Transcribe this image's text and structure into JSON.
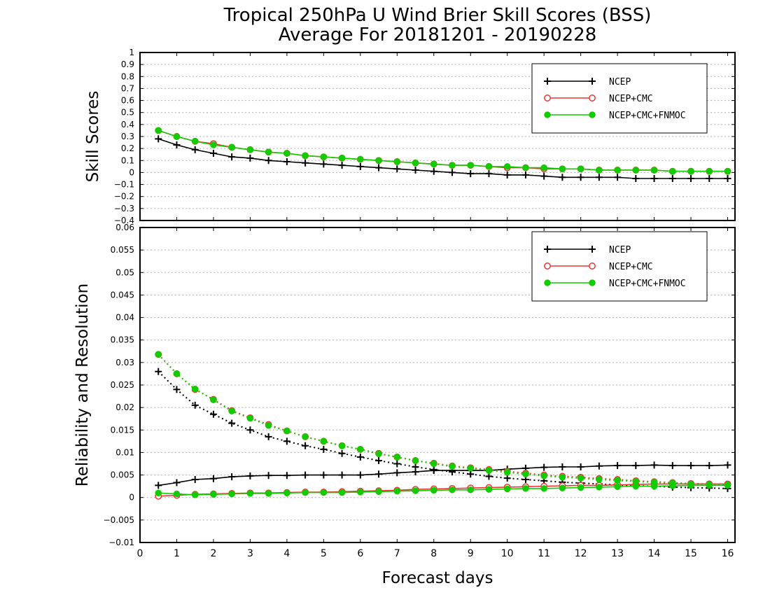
{
  "title_line1": "Tropical 250hPa U Wind Brier Skill Scores (BSS)",
  "title_line2": "Average For 20181201 - 20190228",
  "xlabel": "Forecast days",
  "colors": {
    "NCEP": "#000000",
    "NCEP+CMC": "#ee3333",
    "NCEP+CMC+FNMOC": "#11cc00",
    "grid": "#b0b0b0"
  },
  "chart_data": [
    {
      "type": "line",
      "ylabel": "Skill Scores",
      "xlim": [
        0,
        16.2
      ],
      "ylim": [
        -0.4,
        1
      ],
      "xticks": [
        "0",
        "1",
        "2",
        "3",
        "4",
        "5",
        "6",
        "7",
        "8",
        "9",
        "10",
        "11",
        "12",
        "13",
        "14",
        "15",
        "16"
      ],
      "yticks": [
        "−0.4",
        "−0.3",
        "−0.2",
        "−0.1",
        "0",
        "0.1",
        "0.2",
        "0.3",
        "0.4",
        "0.5",
        "0.6",
        "0.7",
        "0.8",
        "0.9",
        "1"
      ],
      "ytick_values": [
        -0.4,
        -0.3,
        -0.2,
        -0.1,
        0,
        0.1,
        0.2,
        0.3,
        0.4,
        0.5,
        0.6,
        0.7,
        0.8,
        0.9,
        1
      ],
      "grid": true,
      "legend_position": "top-right",
      "x": [
        0.5,
        1,
        1.5,
        2,
        2.5,
        3,
        3.5,
        4,
        4.5,
        5,
        5.5,
        6,
        6.5,
        7,
        7.5,
        8,
        8.5,
        9,
        9.5,
        10,
        10.5,
        11,
        11.5,
        12,
        12.5,
        13,
        13.5,
        14,
        14.5,
        15,
        15.5,
        16
      ],
      "series": [
        {
          "name": "NCEP",
          "marker": "plus",
          "style": "solid",
          "values": [
            0.28,
            0.23,
            0.19,
            0.16,
            0.13,
            0.12,
            0.1,
            0.09,
            0.08,
            0.07,
            0.06,
            0.05,
            0.04,
            0.03,
            0.02,
            0.01,
            0.0,
            -0.01,
            -0.01,
            -0.02,
            -0.02,
            -0.03,
            -0.04,
            -0.04,
            -0.04,
            -0.04,
            -0.05,
            -0.05,
            -0.05,
            -0.05,
            -0.05,
            -0.05
          ]
        },
        {
          "name": "NCEP+CMC",
          "marker": "open-circle",
          "style": "solid",
          "values": [
            0.35,
            0.3,
            0.26,
            0.24,
            0.21,
            0.19,
            0.17,
            0.16,
            0.14,
            0.13,
            0.12,
            0.11,
            0.1,
            0.09,
            0.08,
            0.07,
            0.06,
            0.06,
            0.05,
            0.04,
            0.04,
            0.03,
            0.03,
            0.03,
            0.02,
            0.02,
            0.02,
            0.02,
            0.01,
            0.01,
            0.01,
            0.01
          ]
        },
        {
          "name": "NCEP+CMC+FNMOC",
          "marker": "filled-circle",
          "style": "solid",
          "values": [
            0.35,
            0.3,
            0.26,
            0.23,
            0.21,
            0.19,
            0.17,
            0.16,
            0.14,
            0.13,
            0.12,
            0.11,
            0.1,
            0.09,
            0.08,
            0.07,
            0.06,
            0.06,
            0.05,
            0.05,
            0.04,
            0.04,
            0.03,
            0.03,
            0.02,
            0.02,
            0.02,
            0.02,
            0.01,
            0.01,
            0.01,
            0.01
          ]
        }
      ]
    },
    {
      "type": "line",
      "ylabel": "Reliability and Resolution",
      "xlim": [
        0,
        16.2
      ],
      "ylim": [
        -0.01,
        0.06
      ],
      "xticks": [
        "0",
        "1",
        "2",
        "3",
        "4",
        "5",
        "6",
        "7",
        "8",
        "9",
        "10",
        "11",
        "12",
        "13",
        "14",
        "15",
        "16"
      ],
      "yticks": [
        "−0.01",
        "−0.005",
        "0",
        "0.005",
        "0.01",
        "0.015",
        "0.02",
        "0.025",
        "0.03",
        "0.035",
        "0.04",
        "0.045",
        "0.05",
        "0.055",
        "0.06"
      ],
      "ytick_values": [
        -0.01,
        -0.005,
        0,
        0.005,
        0.01,
        0.015,
        0.02,
        0.025,
        0.03,
        0.035,
        0.04,
        0.045,
        0.05,
        0.055,
        0.06
      ],
      "grid": true,
      "legend_position": "top-right",
      "x": [
        0.5,
        1,
        1.5,
        2,
        2.5,
        3,
        3.5,
        4,
        4.5,
        5,
        5.5,
        6,
        6.5,
        7,
        7.5,
        8,
        8.5,
        9,
        9.5,
        10,
        10.5,
        11,
        11.5,
        12,
        12.5,
        13,
        13.5,
        14,
        14.5,
        15,
        15.5,
        16
      ],
      "series": [
        {
          "name": "NCEP",
          "metric": "reliability",
          "marker": "plus",
          "style": "solid",
          "values": [
            0.0027,
            0.0033,
            0.004,
            0.0042,
            0.0046,
            0.0048,
            0.0049,
            0.0049,
            0.005,
            0.005,
            0.005,
            0.005,
            0.0052,
            0.0055,
            0.0057,
            0.006,
            0.006,
            0.006,
            0.006,
            0.0063,
            0.0065,
            0.0067,
            0.0068,
            0.0068,
            0.007,
            0.0071,
            0.0071,
            0.0072,
            0.0071,
            0.0071,
            0.0071,
            0.0072
          ]
        },
        {
          "name": "NCEP",
          "metric": "resolution",
          "marker": "plus",
          "style": "dotted",
          "values": [
            0.028,
            0.024,
            0.0205,
            0.0185,
            0.0165,
            0.015,
            0.0135,
            0.0125,
            0.0115,
            0.0107,
            0.0098,
            0.009,
            0.0082,
            0.0075,
            0.0068,
            0.0062,
            0.0057,
            0.0052,
            0.0047,
            0.0043,
            0.004,
            0.0037,
            0.0034,
            0.0032,
            0.003,
            0.0028,
            0.0026,
            0.0025,
            0.0023,
            0.0022,
            0.0021,
            0.002
          ]
        },
        {
          "name": "NCEP+CMC",
          "metric": "reliability",
          "marker": "open-circle",
          "style": "solid",
          "values": [
            0.0003,
            0.0005,
            0.0007,
            0.0008,
            0.0009,
            0.001,
            0.001,
            0.0011,
            0.0012,
            0.0012,
            0.0013,
            0.0014,
            0.0015,
            0.0016,
            0.0018,
            0.0019,
            0.002,
            0.0021,
            0.0022,
            0.0023,
            0.0024,
            0.0025,
            0.0026,
            0.0027,
            0.0027,
            0.0028,
            0.0029,
            0.003,
            0.003,
            0.003,
            0.003,
            0.003
          ]
        },
        {
          "name": "NCEP+CMC",
          "metric": "resolution",
          "marker": "open-circle",
          "style": "dotted",
          "values": [
            0.0318,
            0.0275,
            0.024,
            0.0218,
            0.0193,
            0.0177,
            0.0162,
            0.0148,
            0.0135,
            0.0125,
            0.0115,
            0.0107,
            0.0098,
            0.009,
            0.0082,
            0.0076,
            0.007,
            0.0066,
            0.0062,
            0.0058,
            0.0054,
            0.005,
            0.0047,
            0.0045,
            0.0042,
            0.004,
            0.0037,
            0.0035,
            0.0033,
            0.0031,
            0.003,
            0.0029
          ]
        },
        {
          "name": "NCEP+CMC+FNMOC",
          "metric": "reliability",
          "marker": "filled-circle",
          "style": "solid",
          "values": [
            0.001,
            0.0008,
            0.0006,
            0.0007,
            0.0008,
            0.0009,
            0.0009,
            0.001,
            0.0011,
            0.0011,
            0.0011,
            0.0012,
            0.0013,
            0.0014,
            0.0015,
            0.0016,
            0.0017,
            0.0017,
            0.0018,
            0.0019,
            0.002,
            0.002,
            0.0021,
            0.0022,
            0.0023,
            0.0024,
            0.0025,
            0.0025,
            0.0026,
            0.0027,
            0.0027,
            0.0027
          ]
        },
        {
          "name": "NCEP+CMC+FNMOC",
          "metric": "resolution",
          "marker": "filled-circle",
          "style": "dotted",
          "values": [
            0.0318,
            0.0275,
            0.0241,
            0.0217,
            0.0192,
            0.0176,
            0.016,
            0.0148,
            0.0135,
            0.0125,
            0.0115,
            0.0107,
            0.0097,
            0.009,
            0.0082,
            0.0075,
            0.0069,
            0.0065,
            0.006,
            0.0056,
            0.0052,
            0.0048,
            0.0045,
            0.0043,
            0.004,
            0.0038,
            0.0036,
            0.0034,
            0.0032,
            0.003,
            0.0029,
            0.0028
          ]
        }
      ]
    }
  ]
}
